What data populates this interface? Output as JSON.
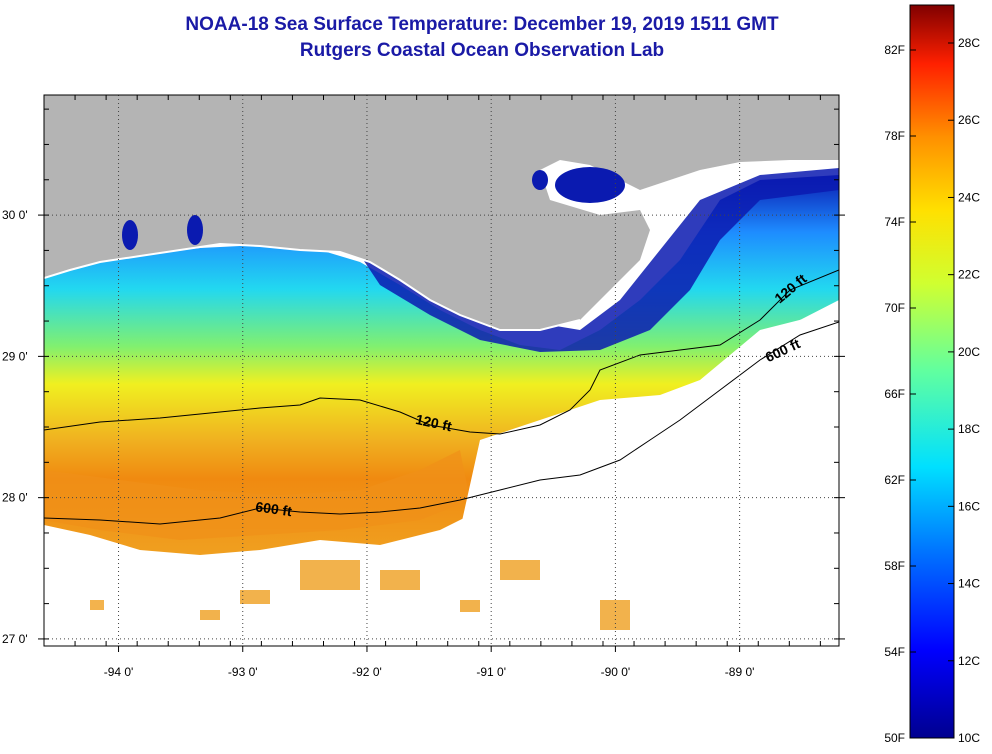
{
  "title": {
    "line1": "NOAA-18 Sea Surface Temperature:  December 19, 2019 1511 GMT",
    "line2": "Rutgers Coastal Ocean Observation Lab"
  },
  "map": {
    "lon_ticks": [
      {
        "value": -94,
        "label": "-94 0'"
      },
      {
        "value": -93,
        "label": "-93 0'"
      },
      {
        "value": -92,
        "label": "-92 0'"
      },
      {
        "value": -91,
        "label": "-91 0'"
      },
      {
        "value": -90,
        "label": "-90 0'"
      },
      {
        "value": -89,
        "label": "-89 0'"
      }
    ],
    "lat_ticks": [
      {
        "value": 30,
        "label": "30 0'"
      },
      {
        "value": 29,
        "label": "29 0'"
      },
      {
        "value": 28,
        "label": "28 0'"
      },
      {
        "value": 27,
        "label": "27 0'"
      }
    ],
    "lon_range": [
      -94.6,
      -88.2
    ],
    "lat_range": [
      26.95,
      30.85
    ],
    "grid": "dotted",
    "land_color": "#b4b4b4",
    "contours": [
      {
        "label": "120 ft"
      },
      {
        "label": "600 ft"
      },
      {
        "label": "600 ft"
      },
      {
        "label": "120 ft"
      }
    ]
  },
  "colorbar": {
    "fahrenheit_labels": [
      "82F",
      "78F",
      "74F",
      "70F",
      "66F",
      "62F",
      "58F",
      "54F",
      "50F"
    ],
    "celsius_labels": [
      "28C",
      "26C",
      "24C",
      "22C",
      "20C",
      "18C",
      "16C",
      "14C",
      "12C",
      "10C"
    ],
    "colors": [
      "#00008f",
      "#0000ff",
      "#0070ff",
      "#00e0ff",
      "#60ffa0",
      "#d0ff30",
      "#ffe000",
      "#ff9000",
      "#ff2000",
      "#800000"
    ]
  }
}
